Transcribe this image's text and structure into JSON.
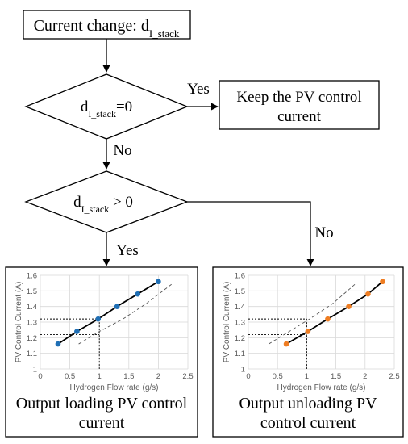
{
  "flowchart": {
    "start": {
      "text": "Current change: d",
      "sub": "I_stack"
    },
    "decision1": {
      "text": "d",
      "sub": "I_stack",
      "suffix": "=0"
    },
    "decision2": {
      "text": "d",
      "sub": "I_stack",
      "suffix": " > 0"
    },
    "keep_box": {
      "line1": "Keep the PV control",
      "line2": "current"
    },
    "labels": {
      "yes1": "Yes",
      "no1": "No",
      "yes2": "Yes",
      "no2": "No"
    },
    "output_loading": {
      "line1": "Output loading PV control",
      "line2": "current"
    },
    "output_unloading": {
      "line1": "Output unloading PV",
      "line2": "control current"
    }
  },
  "chart_data": [
    {
      "type": "line",
      "xlabel": "Hydrogen Flow rate (g/s)",
      "ylabel": "PV Control Current (A)",
      "xlim": [
        0,
        2.5
      ],
      "ylim": [
        1.0,
        1.6
      ],
      "xticks": [
        "0",
        "0.5",
        "1",
        "1.5",
        "2",
        "2.5"
      ],
      "yticks": [
        "1",
        "1.1",
        "1.2",
        "1.3",
        "1.4",
        "1.5",
        "1.6"
      ],
      "series": [
        {
          "x": [
            0.3,
            0.62,
            0.98,
            1.3,
            1.65,
            2.0
          ],
          "y": [
            1.16,
            1.24,
            1.32,
            1.4,
            1.48,
            1.56
          ],
          "color": "#1f6fb5"
        }
      ],
      "reference_curve": {
        "x": [
          0.65,
          1.0,
          1.4,
          1.8,
          2.25
        ],
        "y": [
          1.16,
          1.24,
          1.32,
          1.42,
          1.55
        ]
      },
      "guide": {
        "x": 1.0,
        "y_levels": [
          1.32,
          1.22
        ]
      }
    },
    {
      "type": "line",
      "xlabel": "Hydrogen Flow rate (g/s)",
      "ylabel": "PV Control Current (A)",
      "xlim": [
        0,
        2.5
      ],
      "ylim": [
        1.0,
        1.6
      ],
      "xticks": [
        "0",
        "0.5",
        "1",
        "1.5",
        "2",
        "2.5"
      ],
      "yticks": [
        "1",
        "1.1",
        "1.2",
        "1.3",
        "1.4",
        "1.5",
        "1.6"
      ],
      "series": [
        {
          "x": [
            0.65,
            1.02,
            1.36,
            1.72,
            2.05,
            2.3
          ],
          "y": [
            1.16,
            1.24,
            1.32,
            1.4,
            1.48,
            1.56
          ],
          "color": "#ef7d22"
        }
      ],
      "reference_curve": {
        "x": [
          0.35,
          0.7,
          1.05,
          1.45,
          1.85
        ],
        "y": [
          1.16,
          1.24,
          1.32,
          1.42,
          1.55
        ]
      },
      "guide": {
        "x": 1.0,
        "y_levels": [
          1.32,
          1.22
        ]
      }
    }
  ]
}
